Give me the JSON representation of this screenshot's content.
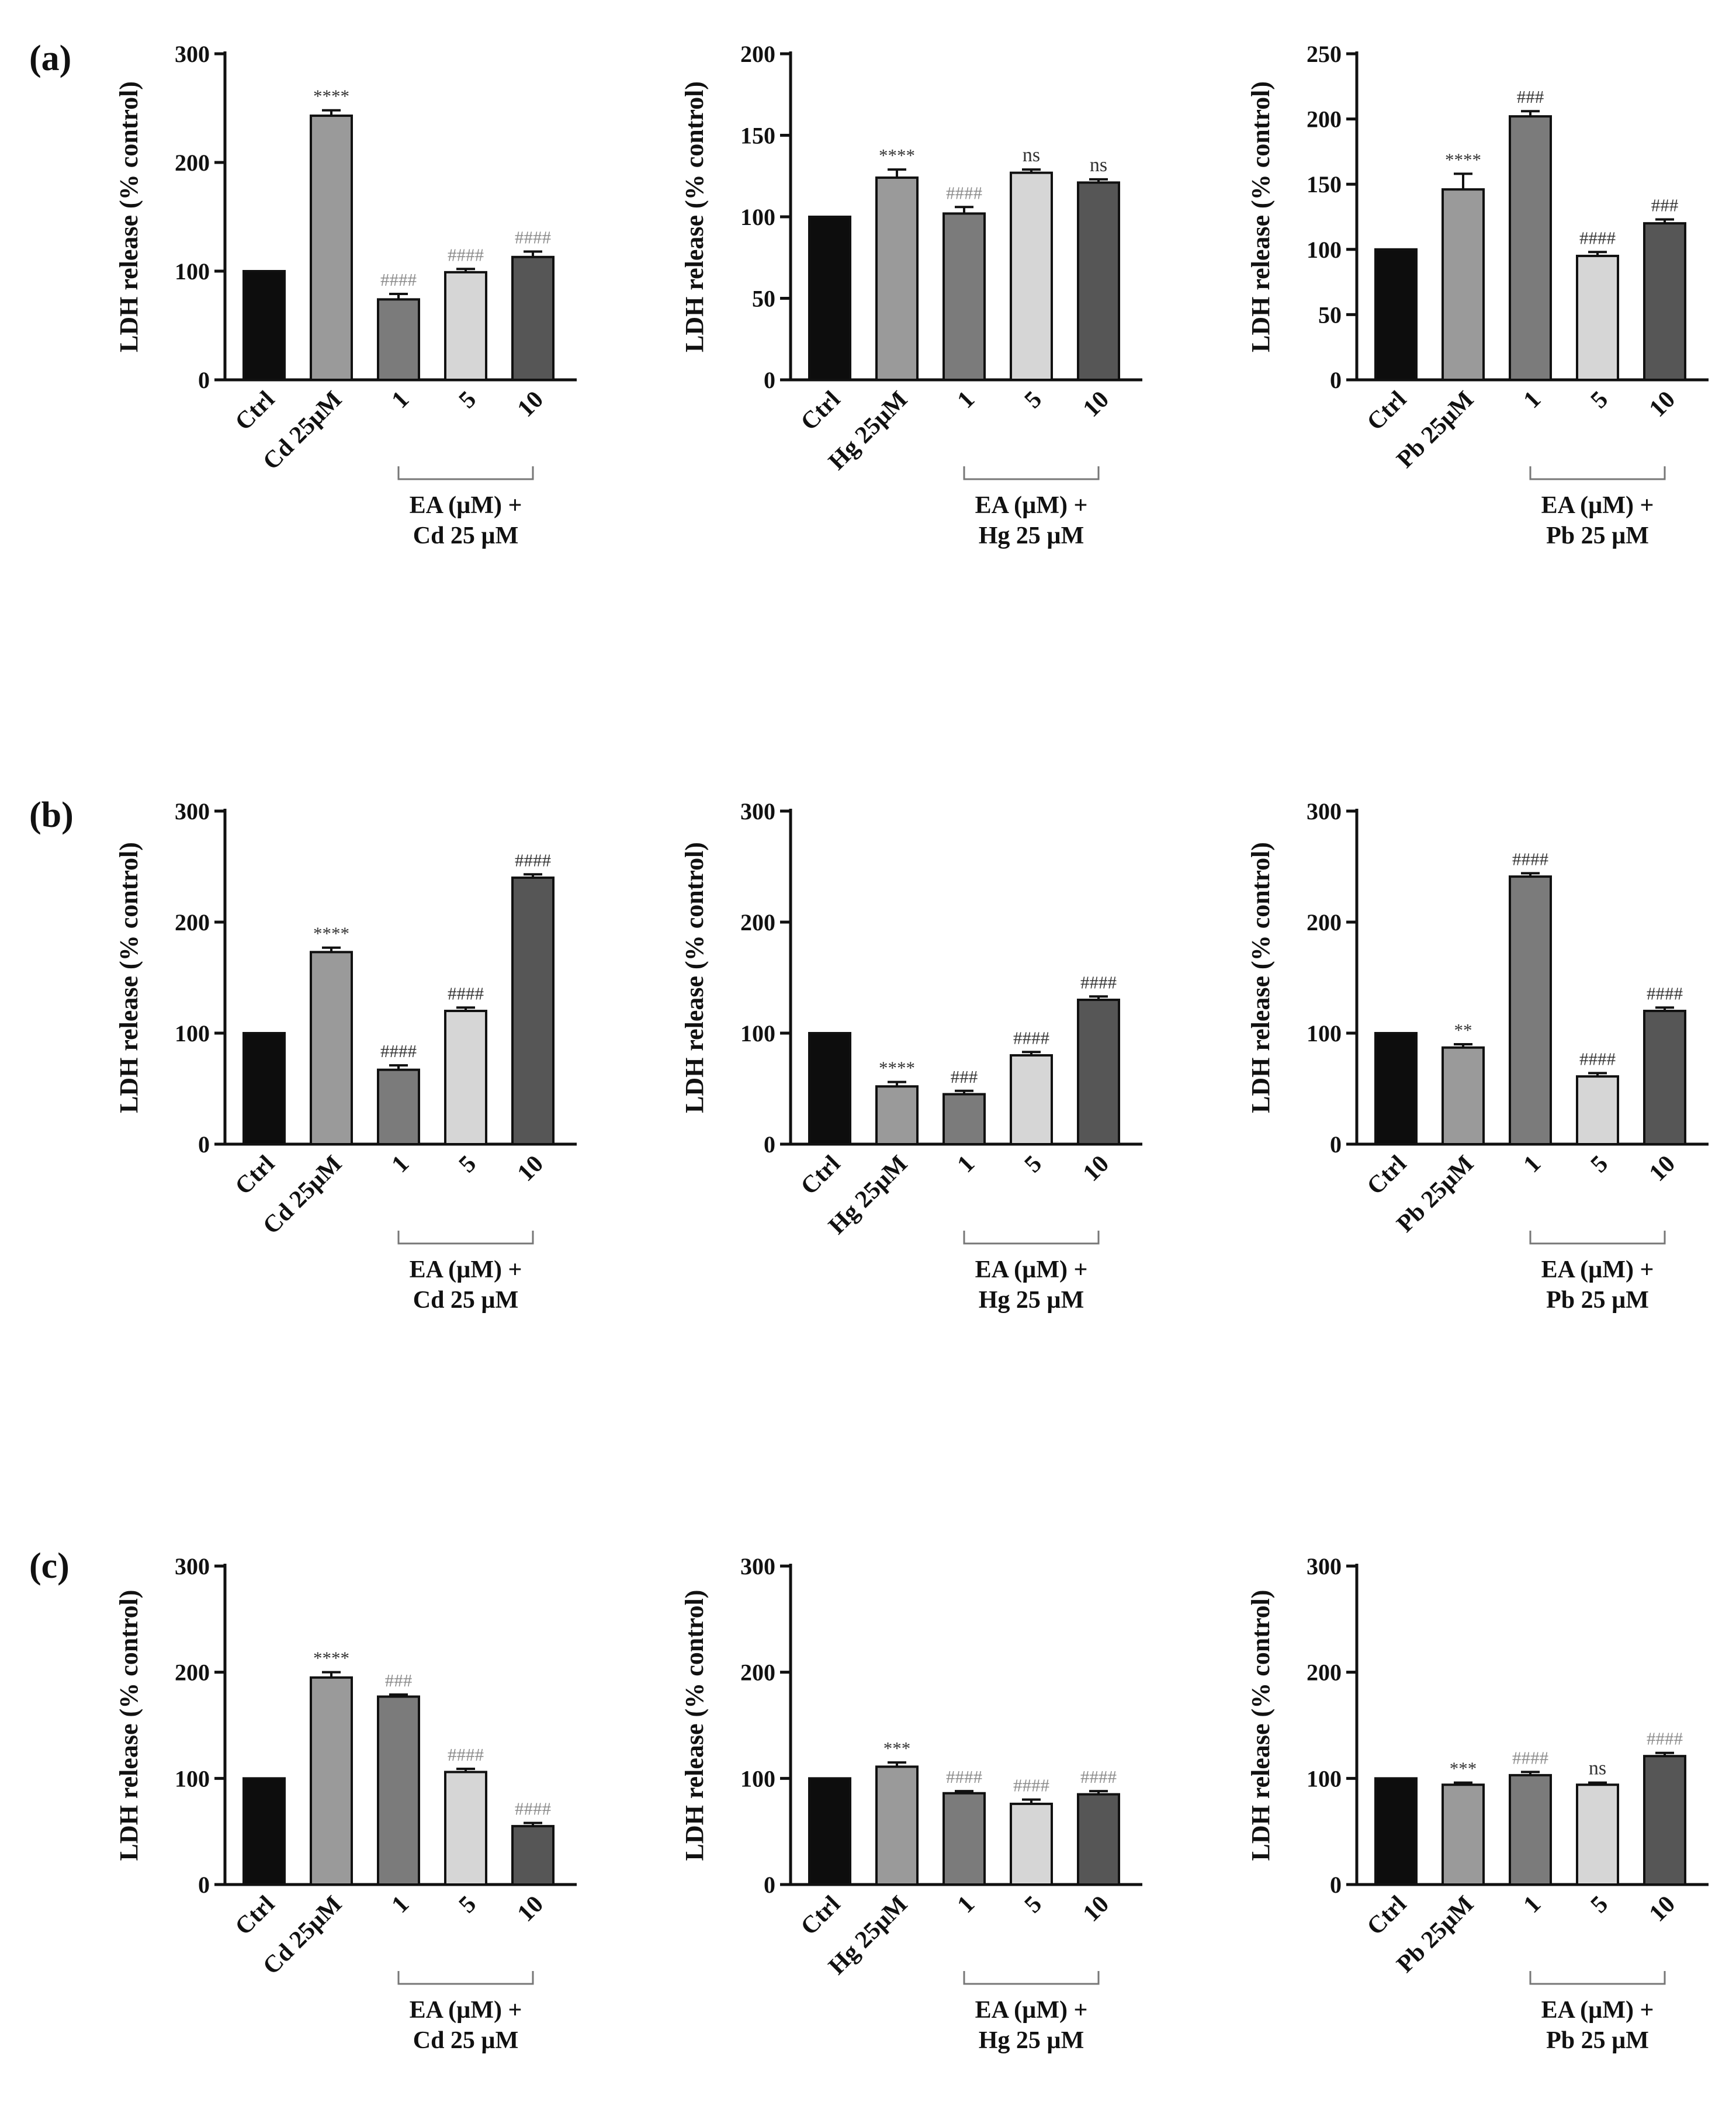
{
  "panels": [
    {
      "letter": "(a)",
      "charts": [
        0,
        1,
        2
      ]
    },
    {
      "letter": "(b)",
      "charts": [
        3,
        4,
        5
      ]
    },
    {
      "letter": "(c)",
      "charts": [
        6,
        7,
        8
      ]
    }
  ],
  "colors": {
    "ctrl": "#0d0d0d",
    "metal": "#9a9a9a",
    "ea1": "#7b7b7b",
    "ea5": "#d6d6d6",
    "ea10": "#565656",
    "outline": "#111111",
    "sig_dark": "#333333",
    "sig_light": "#8a8a8a"
  },
  "chart_data": [
    {
      "type": "bar",
      "title": "",
      "panel": "(a)",
      "metal": "Cd",
      "categories": [
        "Ctrl",
        "Cd 25µM",
        "1",
        "5",
        "10"
      ],
      "values": [
        100,
        243,
        74,
        99,
        113
      ],
      "errors": [
        0,
        5,
        5,
        3,
        5
      ],
      "ylabel": "LDH release (% control)",
      "ylim": [
        0,
        300
      ],
      "yticks": [
        0,
        100,
        200,
        300
      ],
      "group_label": [
        "EA (µM) +",
        "Cd 25 µM"
      ],
      "significance": [
        "",
        "****",
        "####",
        "####",
        "####"
      ],
      "sig_style": [
        "",
        "dark",
        "light",
        "light",
        "light"
      ]
    },
    {
      "type": "bar",
      "title": "",
      "panel": "(a)",
      "metal": "Hg",
      "categories": [
        "Ctrl",
        "Hg 25µM",
        "1",
        "5",
        "10"
      ],
      "values": [
        100,
        124,
        102,
        127,
        121
      ],
      "errors": [
        0,
        5,
        4,
        2,
        2
      ],
      "ylabel": "LDH release (% control)",
      "ylim": [
        0,
        200
      ],
      "yticks": [
        0,
        50,
        100,
        150,
        200
      ],
      "group_label": [
        "EA (µM) +",
        "Hg 25 µM"
      ],
      "significance": [
        "",
        "****",
        "####",
        "ns",
        "ns"
      ],
      "sig_style": [
        "",
        "dark",
        "light",
        "ns",
        "ns"
      ]
    },
    {
      "type": "bar",
      "title": "",
      "panel": "(a)",
      "metal": "Pb",
      "categories": [
        "Ctrl",
        "Pb 25µM",
        "1",
        "5",
        "10"
      ],
      "values": [
        100,
        146,
        202,
        95,
        120
      ],
      "errors": [
        0,
        12,
        4,
        3,
        3
      ],
      "ylabel": "LDH release (% control)",
      "ylim": [
        0,
        250
      ],
      "yticks": [
        0,
        50,
        100,
        150,
        200,
        250
      ],
      "group_label": [
        "EA (µM) +",
        "Pb 25 µM"
      ],
      "significance": [
        "",
        "****",
        "###",
        "####",
        "###"
      ],
      "sig_style": [
        "",
        "dark",
        "dark",
        "dark",
        "dark"
      ]
    },
    {
      "type": "bar",
      "title": "",
      "panel": "(b)",
      "metal": "Cd",
      "categories": [
        "Ctrl",
        "Cd 25µM",
        "1",
        "5",
        "10"
      ],
      "values": [
        100,
        173,
        67,
        120,
        240
      ],
      "errors": [
        0,
        4,
        4,
        3,
        3
      ],
      "ylabel": "LDH release (% control)",
      "ylim": [
        0,
        300
      ],
      "yticks": [
        0,
        100,
        200,
        300
      ],
      "group_label": [
        "EA (µM) +",
        "Cd 25 µM"
      ],
      "significance": [
        "",
        "****",
        "####",
        "####",
        "####"
      ],
      "sig_style": [
        "",
        "dark",
        "dark",
        "dark",
        "dark"
      ]
    },
    {
      "type": "bar",
      "title": "",
      "panel": "(b)",
      "metal": "Hg",
      "categories": [
        "Ctrl",
        "Hg 25µM",
        "1",
        "5",
        "10"
      ],
      "values": [
        100,
        52,
        45,
        80,
        130
      ],
      "errors": [
        0,
        4,
        3,
        3,
        3
      ],
      "ylabel": "LDH release (% control)",
      "ylim": [
        0,
        300
      ],
      "yticks": [
        0,
        100,
        200,
        300
      ],
      "group_label": [
        "EA (µM) +",
        "Hg 25 µM"
      ],
      "significance": [
        "",
        "****",
        "###",
        "####",
        "####"
      ],
      "sig_style": [
        "",
        "dark",
        "dark",
        "dark",
        "dark"
      ]
    },
    {
      "type": "bar",
      "title": "",
      "panel": "(b)",
      "metal": "Pb",
      "categories": [
        "Ctrl",
        "Pb 25µM",
        "1",
        "5",
        "10"
      ],
      "values": [
        100,
        87,
        241,
        61,
        120
      ],
      "errors": [
        0,
        3,
        3,
        3,
        3
      ],
      "ylabel": "LDH release (% control)",
      "ylim": [
        0,
        300
      ],
      "yticks": [
        0,
        100,
        200,
        300
      ],
      "group_label": [
        "EA (µM) +",
        "Pb 25 µM"
      ],
      "significance": [
        "",
        "**",
        "####",
        "####",
        "####"
      ],
      "sig_style": [
        "",
        "dark",
        "dark",
        "dark",
        "dark"
      ]
    },
    {
      "type": "bar",
      "title": "",
      "panel": "(c)",
      "metal": "Cd",
      "categories": [
        "Ctrl",
        "Cd 25µM",
        "1",
        "5",
        "10"
      ],
      "values": [
        100,
        195,
        177,
        106,
        55
      ],
      "errors": [
        0,
        5,
        2,
        3,
        3
      ],
      "ylabel": "LDH release (% control)",
      "ylim": [
        0,
        300
      ],
      "yticks": [
        0,
        100,
        200,
        300
      ],
      "group_label": [
        "EA (µM) +",
        "Cd 25 µM"
      ],
      "significance": [
        "",
        "****",
        "###",
        "####",
        "####"
      ],
      "sig_style": [
        "",
        "dark",
        "light",
        "light",
        "light"
      ]
    },
    {
      "type": "bar",
      "title": "",
      "panel": "(c)",
      "metal": "Hg",
      "categories": [
        "Ctrl",
        "Hg 25µM",
        "1",
        "5",
        "10"
      ],
      "values": [
        100,
        111,
        86,
        76,
        85
      ],
      "errors": [
        0,
        4,
        2,
        4,
        3
      ],
      "ylabel": "LDH release (% control)",
      "ylim": [
        0,
        300
      ],
      "yticks": [
        0,
        100,
        200,
        300
      ],
      "group_label": [
        "EA (µM) +",
        "Hg 25 µM"
      ],
      "significance": [
        "",
        "***",
        "####",
        "####",
        "####"
      ],
      "sig_style": [
        "",
        "dark",
        "light",
        "light",
        "light"
      ]
    },
    {
      "type": "bar",
      "title": "",
      "panel": "(c)",
      "metal": "Pb",
      "categories": [
        "Ctrl",
        "Pb 25µM",
        "1",
        "5",
        "10"
      ],
      "values": [
        100,
        94,
        103,
        94,
        121
      ],
      "errors": [
        0,
        2,
        3,
        2,
        3
      ],
      "ylabel": "LDH release (% control)",
      "ylim": [
        0,
        300
      ],
      "yticks": [
        0,
        100,
        200,
        300
      ],
      "group_label": [
        "EA (µM) +",
        "Pb 25 µM"
      ],
      "significance": [
        "",
        "***",
        "####",
        "ns",
        "####"
      ],
      "sig_style": [
        "",
        "dark",
        "light",
        "ns",
        "light"
      ]
    }
  ]
}
